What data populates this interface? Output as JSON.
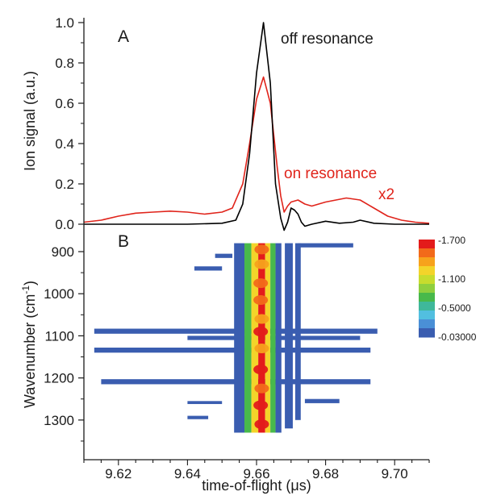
{
  "chart_data": [
    {
      "type": "line",
      "panel": "A",
      "ylabel": "Ion signal (a.u.)",
      "ylim": [
        0.0,
        1.0
      ],
      "yticks": [
        "0.0",
        "0.2",
        "0.4",
        "0.6",
        "0.8",
        "1.0"
      ],
      "annotations": [
        "off resonance",
        "on resonance",
        "x2"
      ],
      "series": [
        {
          "name": "off resonance",
          "color": "#000000",
          "x": [
            9.61,
            9.64,
            9.65,
            9.654,
            9.656,
            9.658,
            9.66,
            9.662,
            9.664,
            9.6655,
            9.667,
            9.668,
            9.669,
            9.67,
            9.671,
            9.672,
            9.673,
            9.674,
            9.676,
            9.68,
            9.684,
            9.688,
            9.69,
            9.694,
            9.7,
            9.71
          ],
          "y": [
            0.0,
            0.0,
            0.005,
            0.02,
            0.1,
            0.35,
            0.75,
            1.0,
            0.7,
            0.2,
            0.03,
            -0.03,
            0.01,
            0.08,
            0.07,
            0.05,
            0.01,
            -0.01,
            0.0,
            0.015,
            0.005,
            0.01,
            0.02,
            0.005,
            0.0,
            0.0
          ]
        },
        {
          "name": "on resonance",
          "color": "#e0241b",
          "x": [
            9.61,
            9.615,
            9.62,
            9.625,
            9.63,
            9.635,
            9.64,
            9.645,
            9.65,
            9.653,
            9.656,
            9.658,
            9.66,
            9.662,
            9.664,
            9.666,
            9.667,
            9.668,
            9.669,
            9.67,
            9.672,
            9.674,
            9.676,
            9.678,
            9.68,
            9.683,
            9.686,
            9.69,
            9.694,
            9.698,
            9.702,
            9.706,
            9.71
          ],
          "y": [
            0.01,
            0.02,
            0.04,
            0.055,
            0.06,
            0.065,
            0.06,
            0.05,
            0.06,
            0.08,
            0.2,
            0.4,
            0.62,
            0.73,
            0.6,
            0.28,
            0.14,
            0.06,
            0.09,
            0.11,
            0.12,
            0.1,
            0.09,
            0.1,
            0.11,
            0.12,
            0.13,
            0.12,
            0.08,
            0.04,
            0.02,
            0.01,
            0.005
          ]
        }
      ]
    },
    {
      "type": "heatmap",
      "panel": "B",
      "xlabel": "time-of-flight (μs)",
      "ylabel": "Wavenumber (cm-1)",
      "xlim": [
        9.61,
        9.71
      ],
      "ylim": [
        870,
        1340
      ],
      "xticks": [
        "9.62",
        "9.64",
        "9.66",
        "9.68",
        "9.70"
      ],
      "yticks": [
        "900",
        "1000",
        "1100",
        "1200",
        "1300"
      ],
      "colorbar": {
        "labels": [
          "-1.700",
          "-1.100",
          "-0.5000",
          "-0.03000"
        ],
        "colors": [
          "#e31b1b",
          "#f26a1a",
          "#f7a21c",
          "#f3d42a",
          "#c7dc2e",
          "#8fcf3e",
          "#48b94b",
          "#3fb89a",
          "#52bfe0",
          "#4a8fd6",
          "#3a5db0"
        ]
      },
      "columns": [
        {
          "x": [
            9.6535,
            9.6565
          ],
          "y": [
            880,
            1330
          ],
          "color": "#3a5db0"
        },
        {
          "x": [
            9.6565,
            9.6585
          ],
          "y": [
            880,
            1330
          ],
          "color": "#48b94b"
        },
        {
          "x": [
            9.6585,
            9.6605
          ],
          "y": [
            880,
            1330
          ],
          "color": "#f3d42a"
        },
        {
          "x": [
            9.6605,
            9.6625
          ],
          "y": [
            880,
            1330
          ],
          "color": "#e31b1b"
        },
        {
          "x": [
            9.6625,
            9.664
          ],
          "y": [
            880,
            1330
          ],
          "color": "#f3d42a"
        },
        {
          "x": [
            9.664,
            9.6655
          ],
          "y": [
            880,
            1330
          ],
          "color": "#48b94b"
        },
        {
          "x": [
            9.6655,
            9.6672
          ],
          "y": [
            880,
            1330
          ],
          "color": "#3a5db0"
        },
        {
          "x": [
            9.6682,
            9.6705
          ],
          "y": [
            880,
            1320
          ],
          "color": "#3a5db0"
        },
        {
          "x": [
            9.6712,
            9.6728
          ],
          "y": [
            880,
            1300
          ],
          "color": "#3a5db0"
        }
      ],
      "bands": [
        {
          "x": [
            9.613,
            9.695
          ],
          "y": [
            1083,
            1095
          ],
          "color": "#3a5db0"
        },
        {
          "x": [
            9.613,
            9.693
          ],
          "y": [
            1128,
            1140
          ],
          "color": "#3a5db0"
        },
        {
          "x": [
            9.615,
            9.693
          ],
          "y": [
            1203,
            1215
          ],
          "color": "#3a5db0"
        },
        {
          "x": [
            9.64,
            9.69
          ],
          "y": [
            1100,
            1110
          ],
          "color": "#3a5db0"
        },
        {
          "x": [
            9.642,
            9.65
          ],
          "y": [
            935,
            945
          ],
          "color": "#3a5db0"
        },
        {
          "x": [
            9.648,
            9.653
          ],
          "y": [
            905,
            915
          ],
          "color": "#3a5db0"
        },
        {
          "x": [
            9.672,
            9.688
          ],
          "y": [
            880,
            890
          ],
          "color": "#3a5db0"
        },
        {
          "x": [
            9.674,
            9.684
          ],
          "y": [
            1250,
            1260
          ],
          "color": "#3a5db0"
        },
        {
          "x": [
            9.64,
            9.646
          ],
          "y": [
            1290,
            1298
          ],
          "color": "#3a5db0"
        },
        {
          "x": [
            9.64,
            9.65
          ],
          "y": [
            1255,
            1262
          ],
          "color": "#3a5db0"
        }
      ],
      "hot_spots": [
        {
          "x": 9.6615,
          "y": 895,
          "color": "#f26a1a"
        },
        {
          "x": 9.6615,
          "y": 930,
          "color": "#f7a21c"
        },
        {
          "x": 9.6612,
          "y": 975,
          "color": "#f26a1a"
        },
        {
          "x": 9.6612,
          "y": 1015,
          "color": "#f26a1a"
        },
        {
          "x": 9.6615,
          "y": 1060,
          "color": "#f7a21c"
        },
        {
          "x": 9.6612,
          "y": 1090,
          "color": "#e31b1b"
        },
        {
          "x": 9.6615,
          "y": 1130,
          "color": "#f7a21c"
        },
        {
          "x": 9.6612,
          "y": 1180,
          "color": "#e31b1b"
        },
        {
          "x": 9.6615,
          "y": 1225,
          "color": "#f26a1a"
        },
        {
          "x": 9.6612,
          "y": 1265,
          "color": "#e31b1b"
        },
        {
          "x": 9.6615,
          "y": 1310,
          "color": "#e31b1b"
        }
      ]
    }
  ]
}
